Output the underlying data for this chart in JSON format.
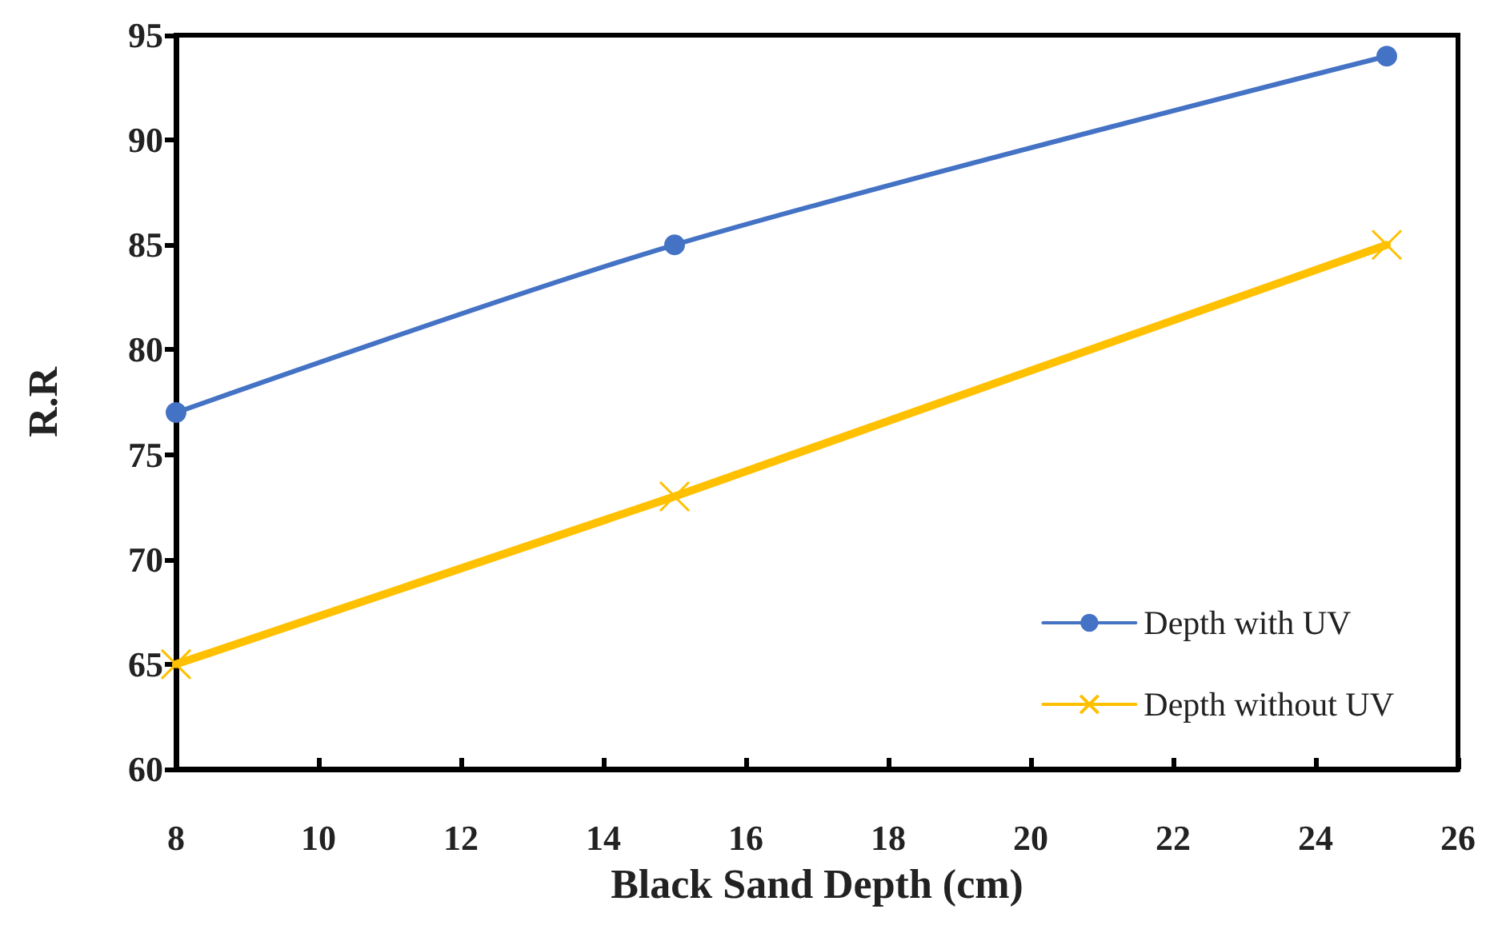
{
  "chart_data": {
    "type": "line",
    "xlabel": "Black Sand Depth (cm)",
    "ylabel": "R.R",
    "x": [
      8,
      15,
      25
    ],
    "series": [
      {
        "name": "Depth with UV",
        "color": "#4472c4",
        "marker": "circle",
        "values": [
          77,
          85,
          94
        ]
      },
      {
        "name": "Depth without UV",
        "color": "#ffc000",
        "marker": "cross",
        "values": [
          65,
          73,
          85
        ]
      }
    ],
    "xlim": [
      8,
      26
    ],
    "xticks": [
      8,
      10,
      12,
      14,
      16,
      18,
      20,
      22,
      24,
      26
    ],
    "ylim": [
      60,
      95
    ],
    "yticks": [
      60,
      65,
      70,
      75,
      80,
      85,
      90,
      95
    ],
    "grid": false,
    "legend": "bottom right",
    "line_style": "solid"
  }
}
